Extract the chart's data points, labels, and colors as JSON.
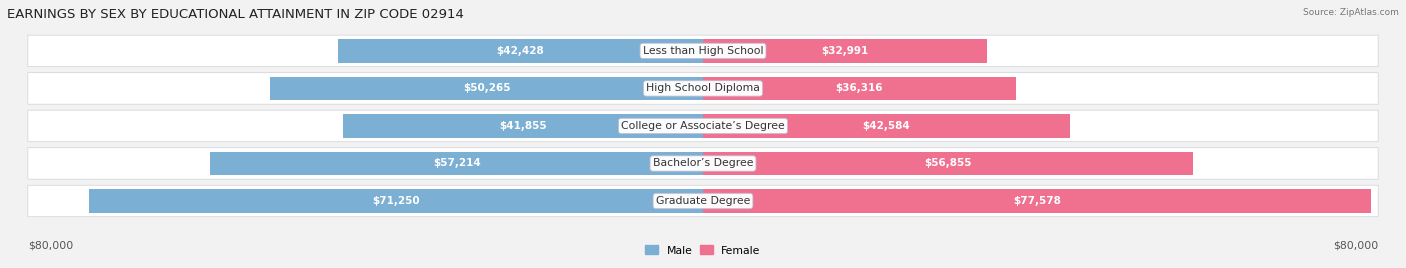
{
  "title": "EARNINGS BY SEX BY EDUCATIONAL ATTAINMENT IN ZIP CODE 02914",
  "source": "Source: ZipAtlas.com",
  "categories": [
    "Less than High School",
    "High School Diploma",
    "College or Associate’s Degree",
    "Bachelor’s Degree",
    "Graduate Degree"
  ],
  "male_values": [
    42428,
    50265,
    41855,
    57214,
    71250
  ],
  "female_values": [
    32991,
    36316,
    42584,
    56855,
    77578
  ],
  "male_color": "#7bafd4",
  "female_color": "#f07090",
  "max_value": 80000,
  "bar_height": 0.62,
  "row_bg": "#f0f0f4",
  "row_border": "#d8d8e0",
  "title_fontsize": 9.5,
  "label_fontsize": 7.8,
  "value_fontsize": 7.5,
  "axis_label": "$80,000",
  "legend_male": "Male",
  "legend_female": "Female",
  "fig_bg": "#f2f2f2"
}
